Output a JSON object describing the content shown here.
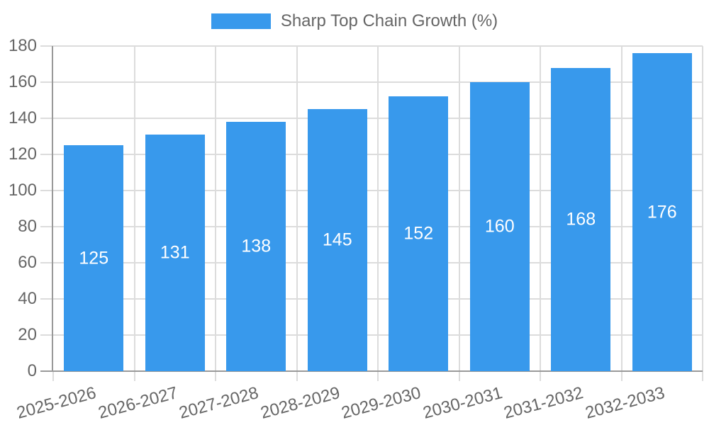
{
  "chart_data": {
    "type": "bar",
    "title": "Sharp Top Chain Growth (%)",
    "categories": [
      "2025-2026",
      "2026-2027",
      "2027-2028",
      "2028-2029",
      "2029-2030",
      "2030-2031",
      "2031-2032",
      "2032-2033"
    ],
    "values": [
      125,
      131,
      138,
      145,
      152,
      160,
      168,
      176
    ],
    "xlabel": "",
    "ylabel": "",
    "ylim": [
      0,
      180
    ],
    "yticks": [
      0,
      20,
      40,
      60,
      80,
      100,
      120,
      140,
      160,
      180
    ],
    "grid": true,
    "legend_position": "top",
    "colors": {
      "bar": "#3899EC",
      "bar_value_label": "#FFFFFF",
      "axis_text": "#666666",
      "axis_line": "#999999",
      "gridline": "#DCDCDC"
    }
  }
}
